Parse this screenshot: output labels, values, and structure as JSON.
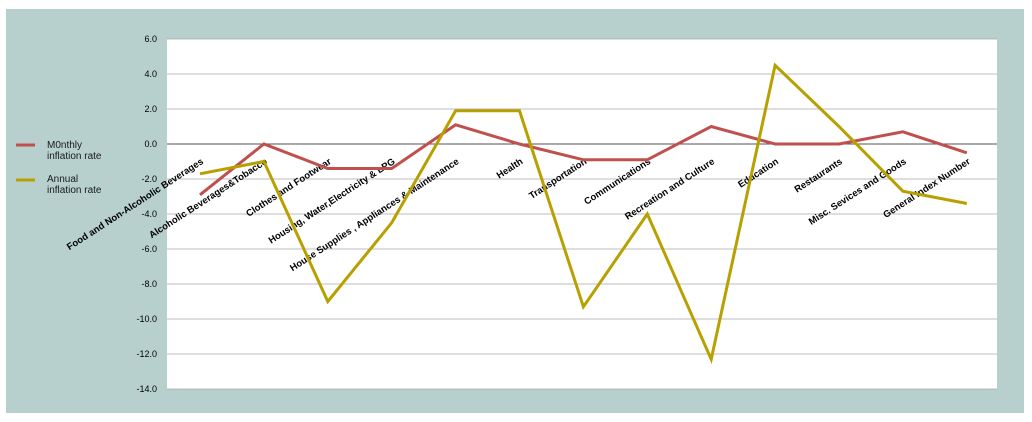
{
  "chart_data": {
    "type": "line",
    "categories": [
      "Food and Non-Alcoholic Beverages",
      "Alcoholic Beverages&Tobacco",
      "Clothes and Footwear",
      "Housing, Water,Electricity & LPG",
      "House Supplies , Appliances & Maintenance",
      "Health",
      "Transportation",
      "Communications",
      "Recreation and Culture",
      "Education",
      "Restaurants",
      "Misc. Sevices and Goods",
      "General Index Number"
    ],
    "series": [
      {
        "name": "M0nthly inflation rate",
        "name_lines": [
          "M0nthly",
          "inflation rate"
        ],
        "color": "#c0504d",
        "values": [
          -2.9,
          0.0,
          -1.4,
          -1.4,
          1.1,
          0.0,
          -0.9,
          -0.9,
          1.0,
          0.0,
          0.0,
          0.7,
          -0.5
        ]
      },
      {
        "name": "Annual inflation rate",
        "name_lines": [
          "Annual",
          "inflation rate"
        ],
        "color": "#b8a000",
        "values": [
          -1.7,
          -1.0,
          -9.0,
          -4.5,
          1.9,
          1.9,
          -9.3,
          -4.0,
          -12.3,
          4.5,
          1.0,
          -2.7,
          -3.4
        ]
      }
    ],
    "ylim": [
      -14.0,
      6.0
    ],
    "ytick_step": 2.0,
    "ytick_labels": [
      "6.0",
      "4.0",
      "2.0",
      "0.0",
      "-2.0",
      "-4.0",
      "-6.0",
      "-8.0",
      "-10.0",
      "-12.0",
      "-14.0"
    ],
    "grid": true,
    "legend_position": "left",
    "title": "",
    "xlabel": "",
    "ylabel": "",
    "colors": {
      "background_outer": "#b7d0ce",
      "plot_area": "#ffffff",
      "gridline": "#a6a6a6"
    }
  }
}
